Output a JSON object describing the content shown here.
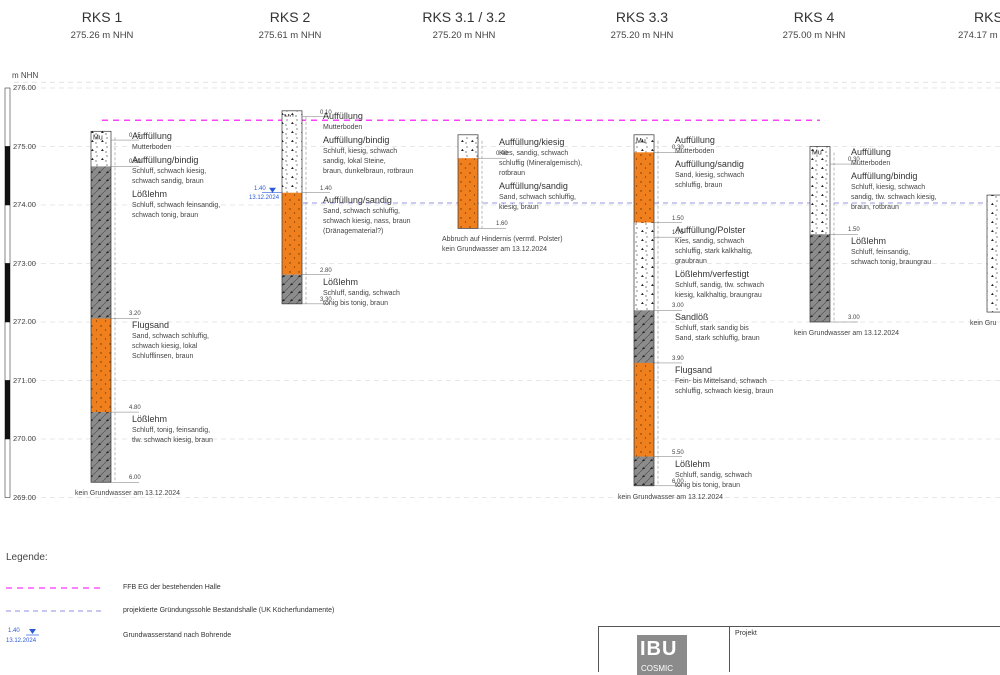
{
  "boreholes": [
    {
      "id": "rks1",
      "name": "RKS 1",
      "elevation": "275.26 m NHN",
      "top": 275.26,
      "bottom_depth": 6.0,
      "layers": [
        {
          "from": 0.0,
          "to": 0.15,
          "material": "topsoil",
          "title": "Auffüllung",
          "desc": [
            "Mutterboden"
          ]
        },
        {
          "from": 0.15,
          "to": 0.6,
          "material": "fill",
          "title": "Auffüllung/bindig",
          "desc": [
            "Schluff, schwach kiesig,",
            "schwach sandig, braun"
          ]
        },
        {
          "from": 0.6,
          "to": 3.2,
          "material": "loess",
          "title": "Lößlehm",
          "desc": [
            "Schluff, schwach feinsandig,",
            "schwach tonig, braun"
          ]
        },
        {
          "from": 3.2,
          "to": 4.8,
          "material": "sand",
          "title": "Flugsand",
          "desc": [
            "Sand, schwach schluffig,",
            "schwach kiesig, lokal",
            "Schlufflinsen, braun"
          ]
        },
        {
          "from": 4.8,
          "to": 6.0,
          "material": "loess",
          "title": "Lößlehm",
          "desc": [
            "Schluff, tonig, feinsandig,",
            "tlw. schwach kiesig, braun"
          ]
        }
      ],
      "depth_labels": [
        "0.15",
        "0.60",
        "3.20",
        "4.80",
        "6.00"
      ],
      "note": [
        "kein Grundwasser am 13.12.2024"
      ]
    },
    {
      "id": "rks2",
      "name": "RKS 2",
      "elevation": "275.61 m NHN",
      "top": 275.61,
      "bottom_depth": 3.3,
      "layers": [
        {
          "from": 0.0,
          "to": 0.1,
          "material": "topsoil",
          "title": "Auffüllung",
          "desc": [
            "Mutterboden"
          ]
        },
        {
          "from": 0.1,
          "to": 1.4,
          "material": "fill",
          "title": "Auffüllung/bindig",
          "desc": [
            "Schluff, kiesig, schwach",
            "sandig, lokal Steine,",
            "braun, dunkelbraun, rotbraun"
          ]
        },
        {
          "from": 1.4,
          "to": 2.8,
          "material": "sand",
          "title": "Auffüllung/sandig",
          "desc": [
            "Sand, schwach schluffig,",
            "schwach kiesig, nass, braun",
            "(Dränagematerial?)"
          ]
        },
        {
          "from": 2.8,
          "to": 3.3,
          "material": "loess",
          "title": "Lößlehm",
          "desc": [
            "Schluff, sandig, schwach",
            "tonig bis tonig, braun"
          ]
        }
      ],
      "depth_labels": [
        "0.10",
        "1.40",
        "2.80",
        "3.30"
      ],
      "water": {
        "depth": "1.40",
        "date": "13.12.2024"
      },
      "note": []
    },
    {
      "id": "rks3",
      "name": "RKS 3.1 / 3.2",
      "elevation": "275.20 m NHN",
      "top": 275.2,
      "bottom_depth": 1.6,
      "layers": [
        {
          "from": 0.0,
          "to": 0.4,
          "material": "fill",
          "title": "Auffüllung/kiesig",
          "desc": [
            "Kies, sandig, schwach",
            "schluffig (Mineralgemisch),",
            "rotbraun"
          ]
        },
        {
          "from": 0.4,
          "to": 1.6,
          "material": "sand",
          "title": "Auffüllung/sandig",
          "desc": [
            "Sand, schwach schluffig,",
            "kiesig, braun"
          ]
        }
      ],
      "depth_labels": [
        "0.40",
        "1.60"
      ],
      "note": [
        "Abbruch auf Hindernis (vermtl. Polster)",
        "kein Grundwasser am 13.12.2024"
      ]
    },
    {
      "id": "rks33",
      "name": "RKS 3.3",
      "elevation": "275.20 m NHN",
      "top": 275.2,
      "bottom_depth": 6.0,
      "layers": [
        {
          "from": 0.0,
          "to": 0.3,
          "material": "topsoil",
          "title": "Auffüllung",
          "desc": [
            "Mutterboden"
          ]
        },
        {
          "from": 0.3,
          "to": 1.5,
          "material": "sand",
          "title": "Auffüllung/sandig",
          "desc": [
            "Sand, kiesig, schwach",
            "schluffig, braun"
          ]
        },
        {
          "from": 1.5,
          "to": 1.75,
          "material": "fill",
          "title": "Auffüllung/Polster",
          "desc": [
            "Kies, sandig, schwach",
            "schluffig, stark kalkhaltig,",
            "graubraun"
          ]
        },
        {
          "from": 1.75,
          "to": 3.0,
          "material": "fill",
          "title": "Lößlehm/verfestigt",
          "desc": [
            "Schluff, sandig, tlw. schwach",
            "kiesig, kalkhaltig, braungrau"
          ]
        },
        {
          "from": 3.0,
          "to": 3.9,
          "material": "loess",
          "title": "Sandlöß",
          "desc": [
            "Schluff, stark sandig bis",
            "Sand, stark schluffig, braun"
          ]
        },
        {
          "from": 3.9,
          "to": 5.5,
          "material": "sand",
          "title": "Flugsand",
          "desc": [
            "Fein- bis Mittelsand, schwach",
            "schluffig, schwach kiesig, braun"
          ]
        },
        {
          "from": 5.5,
          "to": 6.0,
          "material": "loess",
          "title": "Lößlehm",
          "desc": [
            "Schluff, sandig, schwach",
            "tonig bis tonig, braun"
          ]
        }
      ],
      "depth_labels": [
        "0.30",
        "1.50",
        "1.75",
        "3.00",
        "3.90",
        "5.50",
        "6.00"
      ],
      "note": [
        "kein Grundwasser am 13.12.2024"
      ]
    },
    {
      "id": "rks4",
      "name": "RKS 4",
      "elevation": "275.00 m NHN",
      "top": 275.0,
      "bottom_depth": 3.0,
      "layers": [
        {
          "from": 0.0,
          "to": 0.3,
          "material": "topsoil",
          "title": "Auffüllung",
          "desc": [
            "Mutterboden"
          ]
        },
        {
          "from": 0.3,
          "to": 1.5,
          "material": "fill",
          "title": "Auffüllung/bindig",
          "desc": [
            "Schluff, kiesig, schwach",
            "sandig, tlw. schwach kiesig,",
            "braun, rotbraun"
          ]
        },
        {
          "from": 1.5,
          "to": 3.0,
          "material": "loess",
          "title": "Lößlehm",
          "desc": [
            "Schluff, feinsandig,",
            "schwach tonig, braungrau"
          ]
        }
      ],
      "depth_labels": [
        "0.30",
        "1.50",
        "3.00"
      ],
      "note": [
        "kein Grundwasser am 13.12.2024"
      ]
    },
    {
      "id": "rks5",
      "name": "RKS",
      "elevation": "274.17 m",
      "top": 274.17,
      "bottom_depth": 2.0,
      "layers": [
        {
          "from": 0.0,
          "to": 2.0,
          "material": "fill",
          "title": "",
          "desc": []
        }
      ],
      "depth_labels": [],
      "note": [
        "kein Gru"
      ]
    }
  ],
  "axis": {
    "unit": "m NHN",
    "min": 269.0,
    "max": 276.0,
    "ticks": [
      "276.00",
      "275.00",
      "274.00",
      "273.00",
      "272.00",
      "271.00",
      "270.00",
      "269.00"
    ]
  },
  "ffb_level": 275.45,
  "foundation_level": 274.0,
  "symbols": {
    "topsoil": "Mu",
    "fill": "A",
    "polster": "Ab"
  },
  "legend": {
    "title": "Legende:",
    "items": [
      {
        "kind": "ffb",
        "label": "FFB EG der bestehenden Halle",
        "color": "#ff00ff"
      },
      {
        "kind": "foundation",
        "label": "projektierte Gründungssohle Bestandshalle (UK Köcherfundamente)",
        "color": "#6b6bd6"
      },
      {
        "kind": "water",
        "label": "Grundwasserstand nach Bohrende",
        "value": "1.40",
        "date": "13.12.2024",
        "color": "#2a5bd7"
      }
    ]
  },
  "titleblock": {
    "logo": "IBU",
    "logo_sub": "COSMIC",
    "project_label": "Projekt"
  },
  "colors": {
    "sand": "#f07f1d",
    "loess": "#8c8c8c",
    "fill": "#ffffff",
    "topsoil": "#ffffff",
    "grid": "#c8c8c8"
  }
}
